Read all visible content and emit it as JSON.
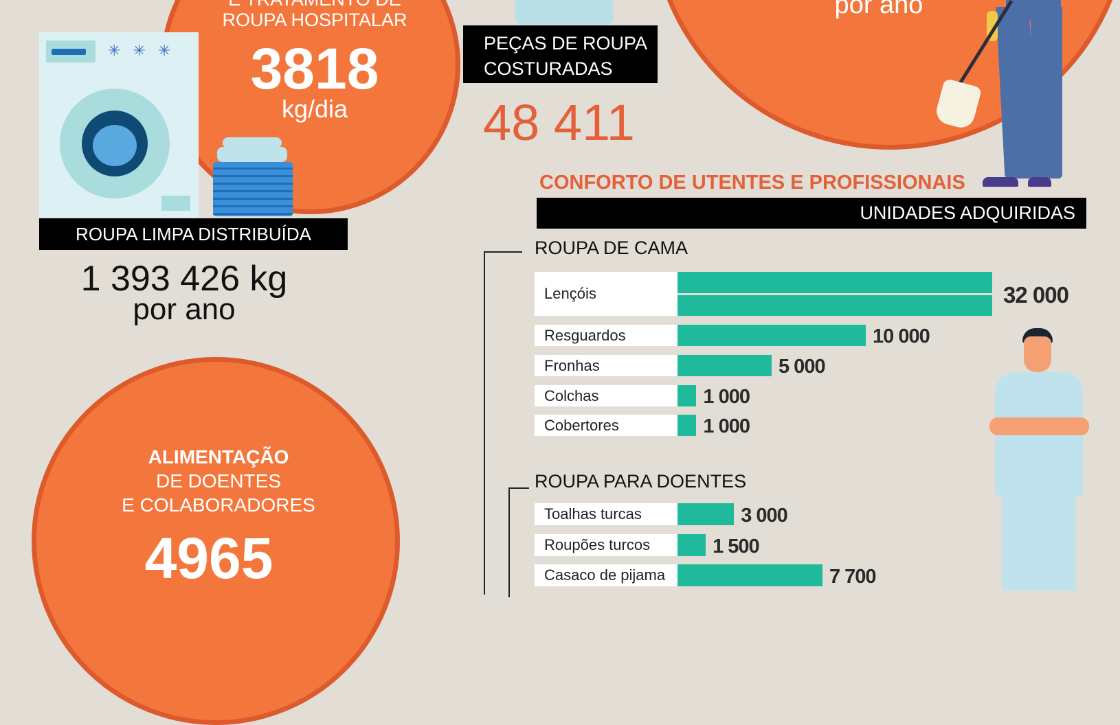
{
  "laundry": {
    "title_line1": "E TRATAMENTO DE",
    "title_line2": "ROUPA HOSPITALAR",
    "value": "3818",
    "unit": "kg/dia"
  },
  "clean_clothes": {
    "label": "ROUPA LIMPA DISTRIBUÍDA",
    "value": "1 393 426 kg",
    "unit": "por ano"
  },
  "sewn": {
    "label_line1": "PEÇAS DE ROUPA",
    "label_line2": "COSTURADAS",
    "value": "48 411"
  },
  "cleaning": {
    "unit": "por ano"
  },
  "food": {
    "line1": "ALIMENTAÇÃO",
    "line2": "DE DOENTES",
    "line3": "E COLABORADORES",
    "value": "4965"
  },
  "comfort": {
    "title": "CONFORTO DE UTENTES E PROFISSIONAIS",
    "subtitle": "UNIDADES ADQUIRIDAS"
  },
  "colors": {
    "bar": "#1fba9b",
    "orange": "#f3773d",
    "ring": "#dd5a2c"
  },
  "chart_data": {
    "type": "bar",
    "orientation": "horizontal",
    "title": "CONFORTO DE UTENTES E PROFISSIONAIS",
    "subtitle": "UNIDADES ADQUIRIDAS",
    "groups": [
      {
        "name": "ROUPA DE CAMA",
        "categories": [
          "Lençóis",
          "Resguardos",
          "Fronhas",
          "Colchas",
          "Cobertores"
        ],
        "values": [
          32000,
          10000,
          5000,
          1000,
          1000
        ],
        "labels": [
          "32 000",
          "10 000",
          "5 000",
          "1 000",
          "1 000"
        ]
      },
      {
        "name": "ROUPA PARA DOENTES",
        "categories": [
          "Toalhas turcas",
          "Roupões turcos",
          "Casaco de pijama"
        ],
        "values": [
          3000,
          1500,
          7700
        ],
        "labels": [
          "3 000",
          "1 500",
          "7 700"
        ]
      }
    ]
  }
}
